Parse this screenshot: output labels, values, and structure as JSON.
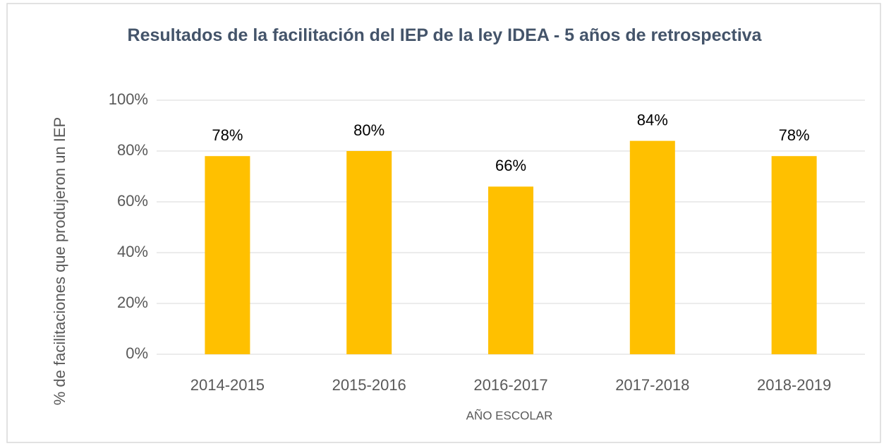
{
  "chart_data": {
    "type": "bar",
    "title": "Resultados de la facilitación del IEP de la ley IDEA - 5 años de retrospectiva",
    "x_label": "AÑO ESCOLAR",
    "y_label": "% de facilitaciones que produjeron un IEP",
    "categories": [
      "2014-2015",
      "2015-2016",
      "2016-2017",
      "2017-2018",
      "2018-2019"
    ],
    "values": [
      78,
      80,
      66,
      84,
      78
    ],
    "value_labels": [
      "78%",
      "80%",
      "66%",
      "84%",
      "78%"
    ],
    "color": "#ffc000",
    "ylim": [
      0,
      100
    ],
    "yticks": [
      {
        "value": 0,
        "label": "0%"
      },
      {
        "value": 20,
        "label": "20%"
      },
      {
        "value": 40,
        "label": "40%"
      },
      {
        "value": 60,
        "label": "60%"
      },
      {
        "value": 80,
        "label": "80%"
      },
      {
        "value": 100,
        "label": "100%"
      }
    ],
    "grid": true
  }
}
